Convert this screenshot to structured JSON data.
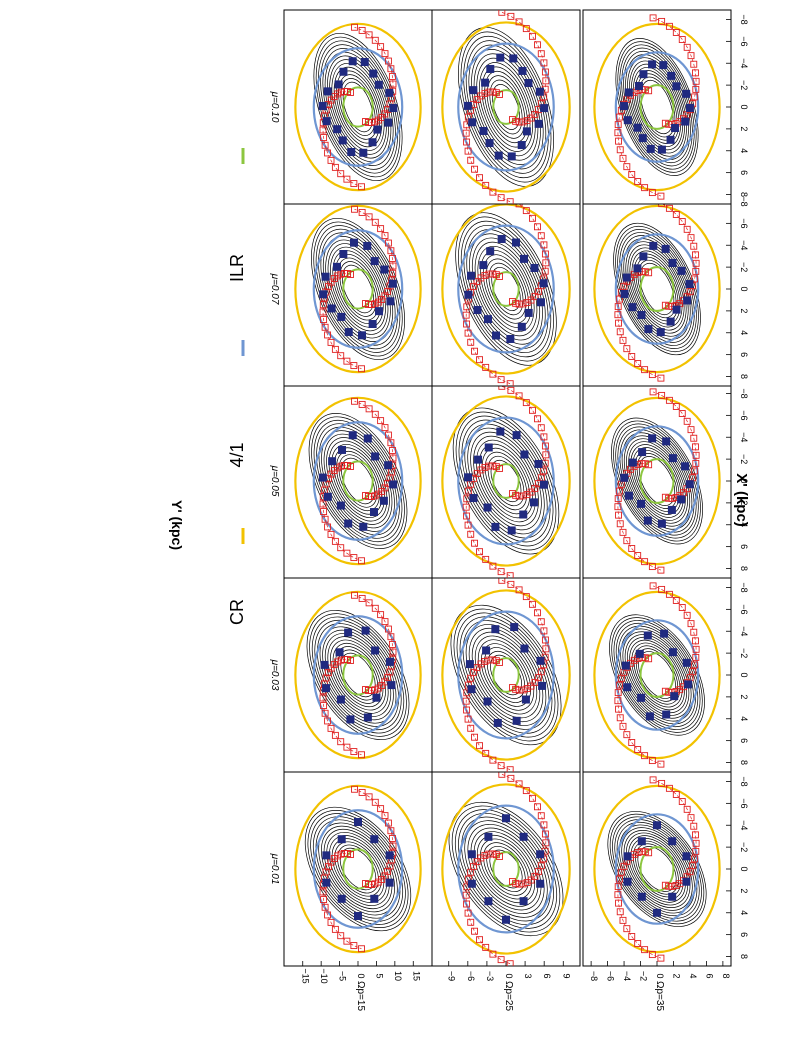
{
  "legend": {
    "items": [
      {
        "label": "ILR",
        "color": "#8cc63f"
      },
      {
        "label": "4/1",
        "color": "#6f96d2"
      },
      {
        "label": "CR",
        "color": "#f2c200"
      }
    ]
  },
  "axis_titles": {
    "x": "X' (kpc)",
    "y": "Y' (kpc)"
  },
  "colors": {
    "ilr": "#8cc63f",
    "four_one": "#6f96d2",
    "cr": "#f2c200",
    "orbit": "#000000",
    "arm_marker": "#e02020",
    "arm_dash": "#e02020",
    "resonant_orbit": "#202a80"
  },
  "chart_data": {
    "type": "scatter",
    "layout": "3 rows x 5 columns small multiples (figure rotated 90 degrees)",
    "columns": [
      {
        "label": "μ=0.01",
        "mu": 0.01
      },
      {
        "label": "μ=0.03",
        "mu": 0.03
      },
      {
        "label": "μ=0.05",
        "mu": 0.05
      },
      {
        "label": "μ=0.07",
        "mu": 0.07
      },
      {
        "label": "μ=0.10",
        "mu": 0.1
      }
    ],
    "rows": [
      {
        "label": "Ωp=15",
        "omega_p": 15,
        "xticks": [
          "−15",
          "−10",
          "−5",
          "0",
          "5",
          "10",
          "15"
        ],
        "yticks": [
          "−15",
          "−10",
          "−5",
          "0",
          "5",
          "10",
          "15"
        ],
        "xlim": [
          -19,
          19
        ],
        "ylim": [
          -19,
          19
        ],
        "radii": {
          "ilr": 4,
          "four_one": 12,
          "cr": 17
        },
        "arm_extent": 16
      },
      {
        "label": "Ωp=25",
        "omega_p": 25,
        "xticks": [
          "−9",
          "−6",
          "−3",
          "0",
          "3",
          "6",
          "9"
        ],
        "yticks": [
          "−9",
          "−6",
          "−3",
          "0",
          "3",
          "6",
          "9"
        ],
        "xlim": [
          -11,
          11
        ],
        "ylim": [
          -11,
          11
        ],
        "radii": {
          "ilr": 2,
          "four_one": 7.5,
          "cr": 10
        },
        "arm_extent": 11
      },
      {
        "label": "Ωp=35",
        "omega_p": 35,
        "xticks": [
          "−8",
          "−6",
          "−4",
          "−2",
          "0",
          "2",
          "4",
          "6",
          "8"
        ],
        "yticks": [
          "−8",
          "−6",
          "−4",
          "−2",
          "0",
          "2",
          "4",
          "6",
          "8"
        ],
        "xlim": [
          -8.5,
          8.5
        ],
        "ylim": [
          -8.5,
          8.5
        ],
        "radii": {
          "ilr": 2,
          "four_one": 5,
          "cr": 7.6
        },
        "arm_extent": 8
      }
    ],
    "xlabel": "X' (kpc)",
    "ylabel": "Y' (kpc)",
    "series": [
      {
        "name": "ILR",
        "kind": "circle"
      },
      {
        "name": "4/1",
        "kind": "circle"
      },
      {
        "name": "CR",
        "kind": "circle"
      }
    ]
  }
}
